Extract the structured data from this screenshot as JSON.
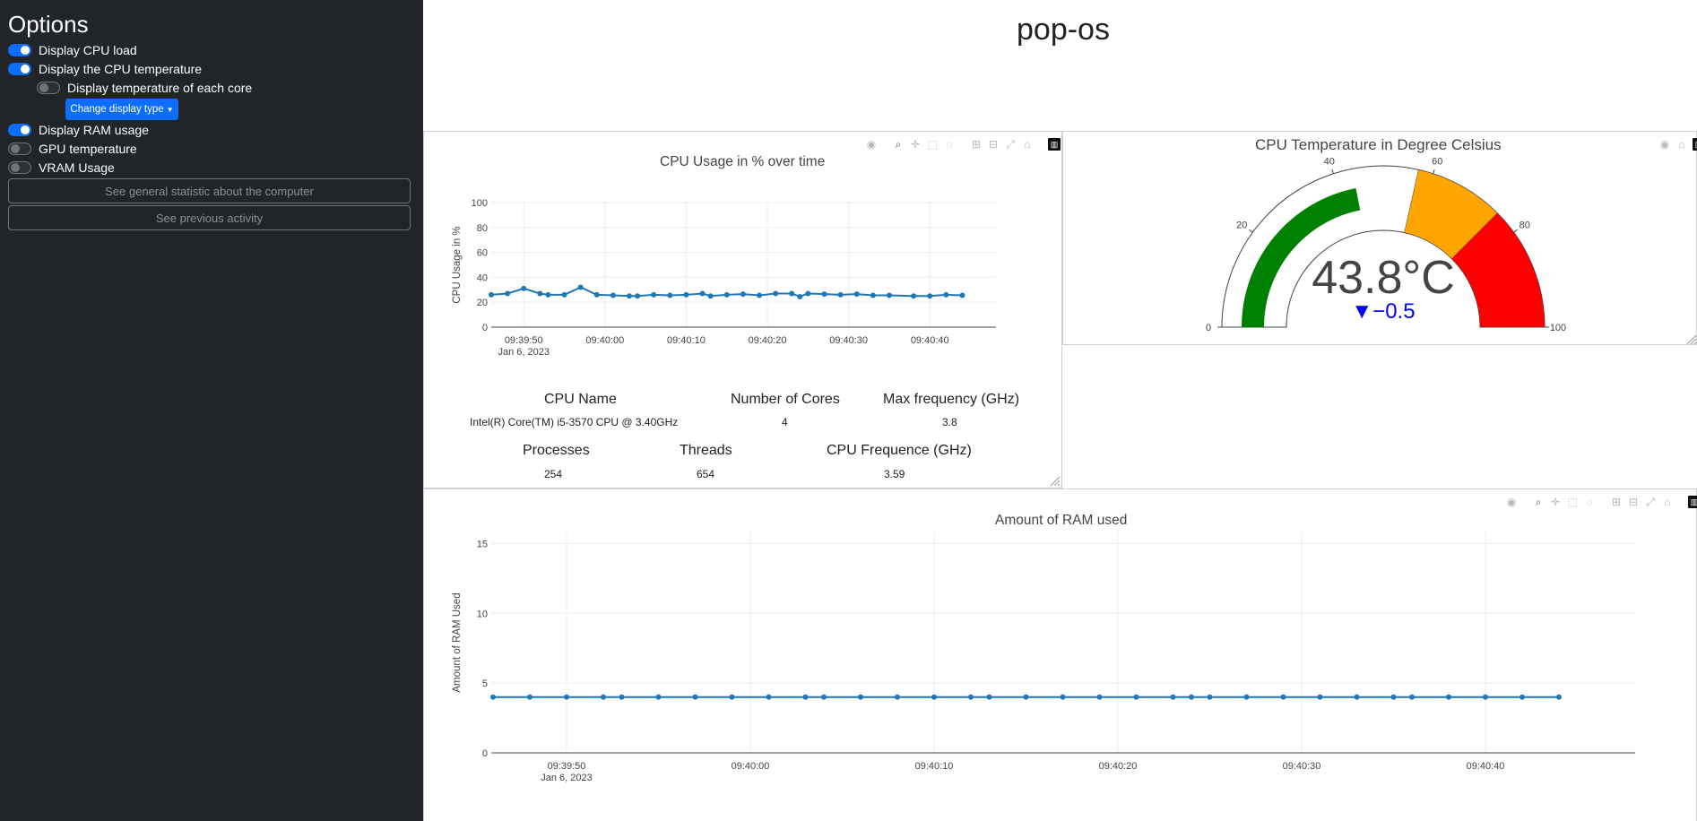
{
  "sidebar": {
    "title": "Options",
    "toggles": [
      {
        "label": "Display CPU load",
        "on": true
      },
      {
        "label": "Display the CPU temperature",
        "on": true
      },
      {
        "label": "Display temperature of each core",
        "on": false
      },
      {
        "label": "Display RAM usage",
        "on": true
      },
      {
        "label": "GPU temperature",
        "on": false
      },
      {
        "label": "VRAM Usage",
        "on": false
      }
    ],
    "dropdown_label": "Change display type",
    "buttons": [
      "See general statistic about the computer",
      "See previous activity"
    ]
  },
  "header": {
    "title": "pop-os"
  },
  "modebar_icons": [
    "camera-icon",
    "zoom-icon",
    "pan-icon",
    "box-select-icon",
    "lasso-icon",
    "zoom-in-icon",
    "zoom-out-icon",
    "autoscale-icon",
    "reset-axes-icon",
    "plotly-logo-icon"
  ],
  "cpu_chart": {
    "chart_data": {
      "type": "line",
      "title": "CPU Usage in % over time",
      "ylabel": "CPU Usage in %",
      "xlabel": "",
      "ylim": [
        0,
        100
      ],
      "yticks": [
        "100",
        "80",
        "60",
        "40",
        "20",
        "0"
      ],
      "xticks": [
        "09:39:50",
        "09:40:00",
        "09:40:10",
        "09:40:20",
        "09:40:30",
        "09:40:40"
      ],
      "xdate": "Jan 6, 2023",
      "x": [
        "09:39:46",
        "09:39:48",
        "09:39:50",
        "09:39:52",
        "09:39:53",
        "09:39:55",
        "09:39:57",
        "09:39:59",
        "09:40:01",
        "09:40:03",
        "09:40:04",
        "09:40:06",
        "09:40:08",
        "09:40:10",
        "09:40:12",
        "09:40:13",
        "09:40:15",
        "09:40:17",
        "09:40:19",
        "09:40:21",
        "09:40:23",
        "09:40:24",
        "09:40:25",
        "09:40:27",
        "09:40:29",
        "09:40:31",
        "09:40:33",
        "09:40:35",
        "09:40:38",
        "09:40:40",
        "09:40:42",
        "09:40:44"
      ],
      "values": [
        26,
        27,
        31,
        27,
        26,
        26,
        32,
        26,
        25.5,
        25,
        25,
        26,
        25.5,
        26,
        27,
        25,
        26,
        26.5,
        25.5,
        27,
        27,
        24.5,
        27,
        26.5,
        26,
        26.5,
        25.5,
        25.5,
        25,
        25,
        26,
        25.5
      ],
      "color": "#1f77b4"
    }
  },
  "cpu_stats": {
    "row1_headers": [
      "CPU Name",
      "Number of Cores",
      "Max frequency (GHz)"
    ],
    "row1_values": [
      "Intel(R) Core(TM) i5-3570 CPU @ 3.40GHz",
      "4",
      "3.8"
    ],
    "row2_headers": [
      "Processes",
      "Threads",
      "CPU Frequence (GHz)"
    ],
    "row2_values": [
      "254",
      "654",
      "3.59"
    ]
  },
  "gauge": {
    "title": "CPU Temperature in Degree Celsius",
    "value_text": "43.8°C",
    "delta_text": "▼−0.5",
    "value": 43.8,
    "delta": -0.5,
    "range": [
      0,
      100
    ],
    "ticks": [
      "0",
      "20",
      "40",
      "60",
      "80",
      "100"
    ],
    "steps": [
      {
        "range": [
          57,
          75
        ],
        "color": "#ffa500"
      },
      {
        "range": [
          75,
          100
        ],
        "color": "#ff0000"
      }
    ],
    "bar_color": "#008000",
    "delta_color": "#0000ff"
  },
  "ram_chart": {
    "chart_data": {
      "type": "line",
      "title": "Amount of RAM used",
      "ylabel": "Amount of RAM Used",
      "xlabel": "",
      "ylim": [
        0,
        16
      ],
      "yticks": [
        "15",
        "10",
        "5",
        "0"
      ],
      "xticks": [
        "09:39:50",
        "09:40:00",
        "09:40:10",
        "09:40:20",
        "09:40:30",
        "09:40:40"
      ],
      "xdate": "Jan 6, 2023",
      "x": [
        "09:39:46",
        "09:39:48",
        "09:39:50",
        "09:39:52",
        "09:39:53",
        "09:39:55",
        "09:39:57",
        "09:39:59",
        "09:40:01",
        "09:40:03",
        "09:40:04",
        "09:40:06",
        "09:40:08",
        "09:40:10",
        "09:40:12",
        "09:40:13",
        "09:40:15",
        "09:40:17",
        "09:40:19",
        "09:40:21",
        "09:40:23",
        "09:40:24",
        "09:40:25",
        "09:40:27",
        "09:40:29",
        "09:40:31",
        "09:40:33",
        "09:40:35",
        "09:40:36",
        "09:40:38",
        "09:40:40",
        "09:40:42",
        "09:40:44"
      ],
      "values": [
        4,
        4,
        4,
        4,
        4,
        4,
        4,
        4,
        4,
        4,
        4,
        4,
        4,
        4,
        4,
        4,
        4,
        4,
        4,
        4,
        4,
        4,
        4,
        4,
        4,
        4,
        4,
        4,
        4,
        4,
        4,
        4,
        4
      ],
      "color": "#1f77b4"
    }
  }
}
